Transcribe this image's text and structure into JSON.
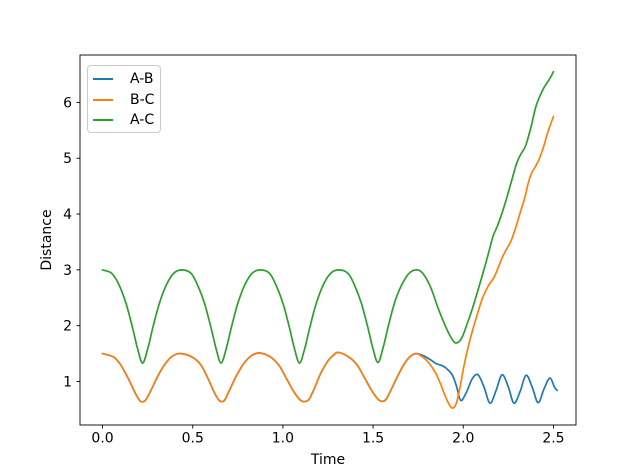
{
  "chart_data": {
    "type": "line",
    "title": "",
    "xlabel": "Time",
    "ylabel": "Distance",
    "grid": false,
    "background": "#ffffff",
    "axis_color": "#000000",
    "xlim": [
      -0.125,
      2.625
    ],
    "ylim": [
      0.22,
      6.85
    ],
    "xticks": {
      "values": [
        0,
        0.5,
        1.0,
        1.5,
        2.0,
        2.5
      ],
      "labels": [
        "0.0",
        "0.5",
        "1.0",
        "1.5",
        "2.0",
        "2.5"
      ]
    },
    "yticks": {
      "values": [
        1,
        2,
        3,
        4,
        5,
        6
      ],
      "labels": [
        "1",
        "2",
        "3",
        "4",
        "5",
        "6"
      ]
    },
    "legend": {
      "position": "upper left"
    },
    "series": [
      {
        "name": "A-B",
        "color": "#1f77b4",
        "points": [
          [
            0,
            1.5
          ],
          [
            0.06,
            1.44
          ],
          [
            0.1,
            1.3
          ],
          [
            0.14,
            1.07
          ],
          [
            0.18,
            0.8
          ],
          [
            0.205,
            0.66
          ],
          [
            0.222,
            0.635
          ],
          [
            0.24,
            0.67
          ],
          [
            0.27,
            0.85
          ],
          [
            0.31,
            1.12
          ],
          [
            0.35,
            1.33
          ],
          [
            0.39,
            1.46
          ],
          [
            0.435,
            1.5
          ],
          [
            0.495,
            1.44
          ],
          [
            0.545,
            1.3
          ],
          [
            0.585,
            1.05
          ],
          [
            0.62,
            0.8
          ],
          [
            0.645,
            0.665
          ],
          [
            0.66,
            0.64
          ],
          [
            0.678,
            0.67
          ],
          [
            0.705,
            0.85
          ],
          [
            0.745,
            1.12
          ],
          [
            0.785,
            1.33
          ],
          [
            0.825,
            1.46
          ],
          [
            0.87,
            1.51
          ],
          [
            0.93,
            1.44
          ],
          [
            0.98,
            1.28
          ],
          [
            1.02,
            1.05
          ],
          [
            1.06,
            0.82
          ],
          [
            1.095,
            0.67
          ],
          [
            1.12,
            0.64
          ],
          [
            1.145,
            0.68
          ],
          [
            1.175,
            0.88
          ],
          [
            1.21,
            1.15
          ],
          [
            1.25,
            1.37
          ],
          [
            1.28,
            1.47
          ],
          [
            1.305,
            1.52
          ],
          [
            1.36,
            1.45
          ],
          [
            1.41,
            1.3
          ],
          [
            1.45,
            1.08
          ],
          [
            1.49,
            0.85
          ],
          [
            1.525,
            0.69
          ],
          [
            1.55,
            0.645
          ],
          [
            1.572,
            0.68
          ],
          [
            1.6,
            0.85
          ],
          [
            1.64,
            1.12
          ],
          [
            1.68,
            1.35
          ],
          [
            1.71,
            1.46
          ],
          [
            1.74,
            1.5
          ],
          [
            1.78,
            1.46
          ],
          [
            1.82,
            1.385
          ],
          [
            1.85,
            1.32
          ],
          [
            1.885,
            1.28
          ],
          [
            1.915,
            1.21
          ],
          [
            1.94,
            1.11
          ],
          [
            1.962,
            0.92
          ],
          [
            1.985,
            0.66
          ],
          [
            2.015,
            0.79
          ],
          [
            2.05,
            1.05
          ],
          [
            2.082,
            1.12
          ],
          [
            2.115,
            0.9
          ],
          [
            2.148,
            0.61
          ],
          [
            2.18,
            0.82
          ],
          [
            2.215,
            1.12
          ],
          [
            2.25,
            0.9
          ],
          [
            2.281,
            0.61
          ],
          [
            2.315,
            0.82
          ],
          [
            2.348,
            1.11
          ],
          [
            2.382,
            0.9
          ],
          [
            2.415,
            0.62
          ],
          [
            2.448,
            0.87
          ],
          [
            2.48,
            1.06
          ],
          [
            2.505,
            0.9
          ],
          [
            2.52,
            0.84
          ]
        ]
      },
      {
        "name": "B-C",
        "color": "#ff7f0e",
        "points": [
          [
            0,
            1.5
          ],
          [
            0.06,
            1.44
          ],
          [
            0.1,
            1.3
          ],
          [
            0.14,
            1.07
          ],
          [
            0.18,
            0.8
          ],
          [
            0.205,
            0.66
          ],
          [
            0.222,
            0.635
          ],
          [
            0.24,
            0.67
          ],
          [
            0.27,
            0.85
          ],
          [
            0.31,
            1.12
          ],
          [
            0.35,
            1.33
          ],
          [
            0.39,
            1.46
          ],
          [
            0.435,
            1.5
          ],
          [
            0.495,
            1.44
          ],
          [
            0.545,
            1.3
          ],
          [
            0.585,
            1.05
          ],
          [
            0.62,
            0.8
          ],
          [
            0.645,
            0.665
          ],
          [
            0.66,
            0.64
          ],
          [
            0.678,
            0.67
          ],
          [
            0.705,
            0.85
          ],
          [
            0.745,
            1.12
          ],
          [
            0.785,
            1.33
          ],
          [
            0.825,
            1.46
          ],
          [
            0.87,
            1.51
          ],
          [
            0.93,
            1.44
          ],
          [
            0.98,
            1.28
          ],
          [
            1.02,
            1.05
          ],
          [
            1.06,
            0.82
          ],
          [
            1.095,
            0.67
          ],
          [
            1.12,
            0.64
          ],
          [
            1.145,
            0.68
          ],
          [
            1.175,
            0.88
          ],
          [
            1.21,
            1.15
          ],
          [
            1.25,
            1.37
          ],
          [
            1.28,
            1.47
          ],
          [
            1.305,
            1.52
          ],
          [
            1.36,
            1.45
          ],
          [
            1.41,
            1.3
          ],
          [
            1.45,
            1.08
          ],
          [
            1.49,
            0.85
          ],
          [
            1.525,
            0.69
          ],
          [
            1.55,
            0.645
          ],
          [
            1.572,
            0.68
          ],
          [
            1.6,
            0.85
          ],
          [
            1.64,
            1.12
          ],
          [
            1.68,
            1.35
          ],
          [
            1.71,
            1.46
          ],
          [
            1.74,
            1.5
          ],
          [
            1.775,
            1.44
          ],
          [
            1.81,
            1.33
          ],
          [
            1.845,
            1.16
          ],
          [
            1.875,
            0.95
          ],
          [
            1.905,
            0.7
          ],
          [
            1.935,
            0.53
          ],
          [
            1.96,
            0.6
          ],
          [
            1.985,
            0.95
          ],
          [
            2.005,
            1.3
          ],
          [
            2.035,
            1.72
          ],
          [
            2.07,
            2.12
          ],
          [
            2.105,
            2.48
          ],
          [
            2.14,
            2.72
          ],
          [
            2.17,
            2.86
          ],
          [
            2.195,
            3.05
          ],
          [
            2.22,
            3.25
          ],
          [
            2.245,
            3.4
          ],
          [
            2.265,
            3.52
          ],
          [
            2.29,
            3.75
          ],
          [
            2.315,
            4.02
          ],
          [
            2.34,
            4.28
          ],
          [
            2.36,
            4.55
          ],
          [
            2.38,
            4.74
          ],
          [
            2.4,
            4.85
          ],
          [
            2.42,
            4.98
          ],
          [
            2.445,
            5.2
          ],
          [
            2.47,
            5.48
          ],
          [
            2.5,
            5.75
          ]
        ]
      },
      {
        "name": "A-C",
        "color": "#2ca02c",
        "points": [
          [
            0,
            3.0
          ],
          [
            0.05,
            2.94
          ],
          [
            0.09,
            2.74
          ],
          [
            0.13,
            2.4
          ],
          [
            0.165,
            1.98
          ],
          [
            0.195,
            1.58
          ],
          [
            0.222,
            1.33
          ],
          [
            0.25,
            1.58
          ],
          [
            0.28,
            1.98
          ],
          [
            0.315,
            2.4
          ],
          [
            0.355,
            2.74
          ],
          [
            0.395,
            2.94
          ],
          [
            0.44,
            3.0
          ],
          [
            0.49,
            2.94
          ],
          [
            0.525,
            2.74
          ],
          [
            0.565,
            2.4
          ],
          [
            0.6,
            1.98
          ],
          [
            0.63,
            1.58
          ],
          [
            0.657,
            1.33
          ],
          [
            0.685,
            1.58
          ],
          [
            0.715,
            1.98
          ],
          [
            0.75,
            2.4
          ],
          [
            0.79,
            2.74
          ],
          [
            0.83,
            2.94
          ],
          [
            0.875,
            3.0
          ],
          [
            0.925,
            2.94
          ],
          [
            0.96,
            2.74
          ],
          [
            1.0,
            2.4
          ],
          [
            1.035,
            1.98
          ],
          [
            1.065,
            1.58
          ],
          [
            1.092,
            1.33
          ],
          [
            1.12,
            1.58
          ],
          [
            1.15,
            1.98
          ],
          [
            1.185,
            2.4
          ],
          [
            1.225,
            2.74
          ],
          [
            1.265,
            2.94
          ],
          [
            1.31,
            3.0
          ],
          [
            1.36,
            2.94
          ],
          [
            1.395,
            2.74
          ],
          [
            1.435,
            2.4
          ],
          [
            1.47,
            1.98
          ],
          [
            1.5,
            1.58
          ],
          [
            1.527,
            1.34
          ],
          [
            1.555,
            1.6
          ],
          [
            1.585,
            2.0
          ],
          [
            1.62,
            2.42
          ],
          [
            1.66,
            2.74
          ],
          [
            1.7,
            2.94
          ],
          [
            1.745,
            3.0
          ],
          [
            1.78,
            2.92
          ],
          [
            1.82,
            2.68
          ],
          [
            1.86,
            2.32
          ],
          [
            1.9,
            2.0
          ],
          [
            1.93,
            1.8
          ],
          [
            1.958,
            1.69
          ],
          [
            1.99,
            1.77
          ],
          [
            2.02,
            2.02
          ],
          [
            2.05,
            2.3
          ],
          [
            2.08,
            2.62
          ],
          [
            2.11,
            2.95
          ],
          [
            2.14,
            3.3
          ],
          [
            2.165,
            3.6
          ],
          [
            2.19,
            3.79
          ],
          [
            2.215,
            4.02
          ],
          [
            2.24,
            4.28
          ],
          [
            2.27,
            4.62
          ],
          [
            2.295,
            4.9
          ],
          [
            2.315,
            5.05
          ],
          [
            2.345,
            5.22
          ],
          [
            2.375,
            5.55
          ],
          [
            2.405,
            5.95
          ],
          [
            2.445,
            6.25
          ],
          [
            2.475,
            6.4
          ],
          [
            2.5,
            6.55
          ]
        ]
      }
    ]
  }
}
